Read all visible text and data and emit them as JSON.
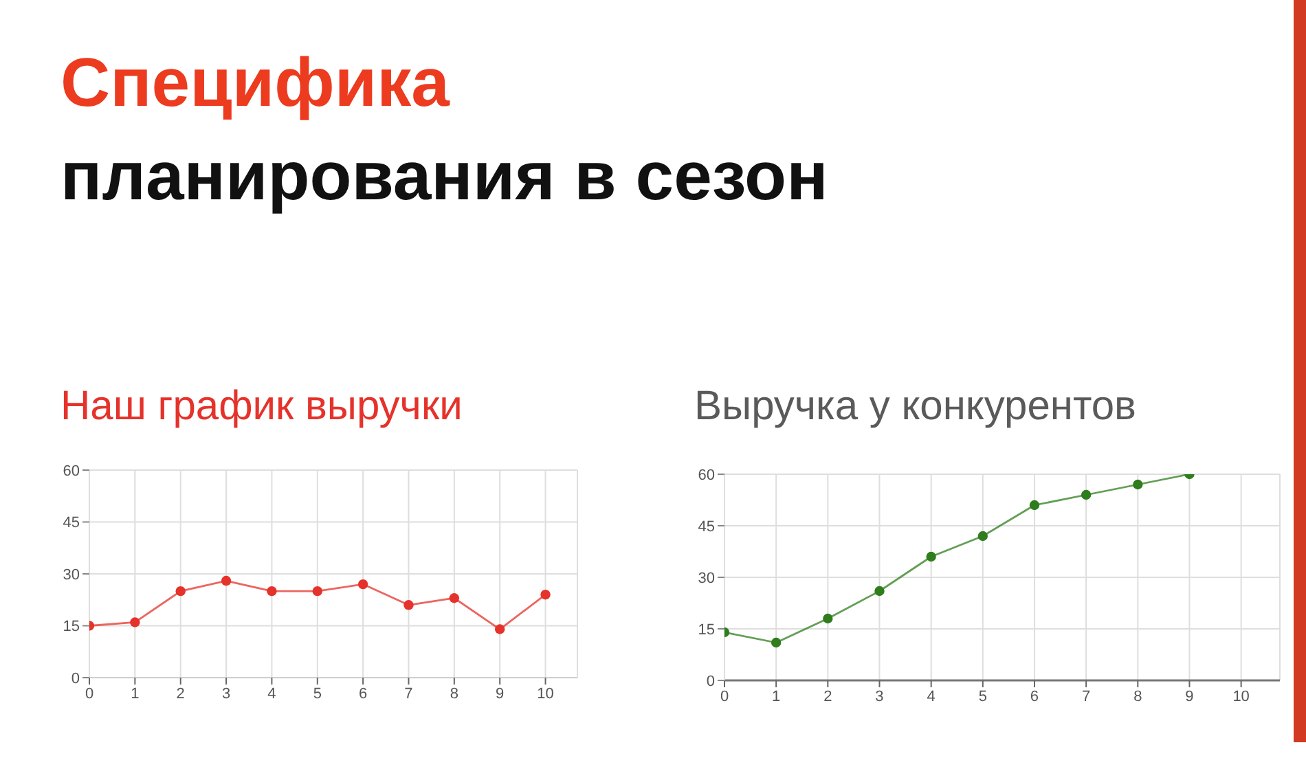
{
  "chart_data": [
    {
      "type": "line",
      "title": "Наш график выручки",
      "annotations": [
        "Специфика",
        "планирования в сезон"
      ],
      "x": [
        0,
        1,
        2,
        3,
        4,
        5,
        6,
        7,
        8,
        9,
        10
      ],
      "series": [
        {
          "color": "#e5322a",
          "values": [
            15,
            16,
            25,
            28,
            25,
            25,
            27,
            21,
            23,
            14,
            24
          ]
        }
      ],
      "xlim": [
        0,
        10.7
      ],
      "xticks": [
        0,
        1,
        2,
        3,
        4,
        5,
        6,
        7,
        8,
        9,
        10
      ],
      "ylim": [
        0,
        60
      ],
      "yticks": [
        0,
        15,
        30,
        45,
        60
      ],
      "grid": true,
      "marker": "circle",
      "line_style": "solid"
    },
    {
      "type": "line",
      "title": "Выручка у конкурентов",
      "x": [
        0,
        1,
        2,
        3,
        4,
        5,
        6,
        7,
        8,
        9
      ],
      "series": [
        {
          "color": "#2f7d1c",
          "values": [
            14,
            11,
            18,
            26,
            36,
            42,
            51,
            54,
            57,
            60
          ]
        }
      ],
      "xlim": [
        0,
        10.75
      ],
      "xticks": [
        0,
        1,
        2,
        3,
        4,
        5,
        6,
        7,
        8,
        9,
        10
      ],
      "ylim": [
        0,
        60
      ],
      "yticks": [
        0,
        15,
        30,
        45,
        60
      ],
      "grid": true,
      "marker": "circle",
      "line_style": "solid"
    }
  ]
}
